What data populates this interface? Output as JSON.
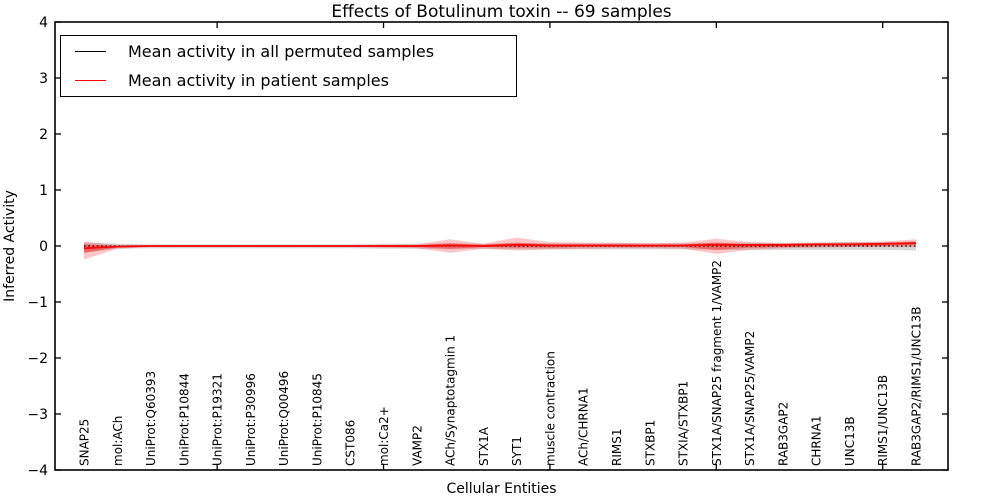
{
  "chart_data": {
    "type": "line",
    "title": "Effects of Botulinum toxin -- 69 samples",
    "xlabel": "Cellular Entities",
    "ylabel": "Inferred Activity",
    "ylim": [
      -4,
      4
    ],
    "grid": false,
    "legend_position": "upper left",
    "y_tick_labels": [
      "4",
      "3",
      "2",
      "1",
      "0",
      "−1",
      "−2",
      "−3",
      "−4"
    ],
    "y_tick_values": [
      4,
      3,
      2,
      1,
      0,
      -1,
      -2,
      -3,
      -4
    ],
    "x_major_tick_indices": [
      4,
      9,
      14,
      19,
      24
    ],
    "categories": [
      "SNAP25",
      "mol:ACh",
      "UniProt:Q60393",
      "UniProt:P10844",
      "UniProt:P19321",
      "UniProt:P30996",
      "UniProt:Q00496",
      "UniProt:P10845",
      "CST086",
      "mol:Ca2+",
      "VAMP2",
      "ACh/Synaptotagmin 1",
      "STX1A",
      "SYT1",
      "muscle contraction",
      "ACh/CHRNA1",
      "RIMS1",
      "STXBP1",
      "STXIA/STXBP1",
      "STX1A/SNAP25 fragment 1/VAMP2",
      "STX1A/SNAP25/VAMP2",
      "RAB3GAP2",
      "CHRNA1",
      "UNC13B",
      "RIMS1/UNC13B",
      "RAB3GAP2/RIMS1/UNC13B"
    ],
    "series": [
      {
        "name": "Mean activity in all permuted samples",
        "color": "#000000",
        "style": "dotted",
        "values": [
          0,
          0,
          0,
          0,
          0,
          0,
          0,
          0,
          0,
          0,
          0,
          0,
          0,
          0,
          0,
          0,
          0,
          0,
          0,
          0,
          0,
          0,
          0,
          0,
          0,
          0
        ]
      },
      {
        "name": "Mean activity in patient samples",
        "color": "#ff0000",
        "style": "solid",
        "values": [
          -0.04,
          -0.01,
          0,
          0,
          0,
          0,
          0,
          0,
          0,
          0,
          0,
          0.01,
          0,
          0.02,
          0.01,
          0.01,
          0.01,
          0.01,
          0.01,
          0.02,
          0.02,
          0.02,
          0.03,
          0.03,
          0.04,
          0.05
        ]
      }
    ],
    "bands": [
      {
        "name": "permuted-samples-range",
        "color": "rgba(110,110,110,0.28)",
        "upper": [
          0.06,
          0.04,
          0.03,
          0.03,
          0.03,
          0.03,
          0.03,
          0.03,
          0.03,
          0.04,
          0.04,
          0.05,
          0.04,
          0.05,
          0.05,
          0.05,
          0.05,
          0.05,
          0.05,
          0.06,
          0.06,
          0.06,
          0.06,
          0.07,
          0.07,
          0.08
        ],
        "lower": [
          -0.12,
          -0.05,
          -0.04,
          -0.04,
          -0.04,
          -0.04,
          -0.04,
          -0.04,
          -0.04,
          -0.05,
          -0.05,
          -0.06,
          -0.05,
          -0.06,
          -0.06,
          -0.06,
          -0.06,
          -0.06,
          -0.06,
          -0.07,
          -0.07,
          -0.07,
          -0.07,
          -0.07,
          -0.07,
          -0.08
        ]
      },
      {
        "name": "patient-samples-range-outer",
        "color": "rgba(255,0,0,0.22)",
        "upper": [
          0.08,
          0.02,
          0.01,
          0.01,
          0.01,
          0.01,
          0.01,
          0.01,
          0.01,
          0.02,
          0.03,
          0.12,
          0.04,
          0.15,
          0.07,
          0.06,
          0.06,
          0.05,
          0.06,
          0.13,
          0.07,
          0.05,
          0.06,
          0.07,
          0.08,
          0.12
        ],
        "lower": [
          -0.24,
          -0.05,
          -0.02,
          -0.02,
          -0.02,
          -0.02,
          -0.02,
          -0.02,
          -0.02,
          -0.03,
          -0.04,
          -0.12,
          -0.05,
          -0.08,
          -0.06,
          -0.05,
          -0.04,
          -0.04,
          -0.05,
          -0.14,
          -0.07,
          -0.04,
          -0.03,
          -0.02,
          -0.02,
          -0.02
        ]
      },
      {
        "name": "patient-samples-range-inner",
        "color": "rgba(255,0,0,0.4)",
        "upper": [
          0.03,
          0.0,
          0.005,
          0.005,
          0.005,
          0.005,
          0.005,
          0.005,
          0.005,
          0.01,
          0.01,
          0.05,
          0.02,
          0.06,
          0.03,
          0.03,
          0.03,
          0.02,
          0.03,
          0.06,
          0.03,
          0.02,
          0.03,
          0.03,
          0.04,
          0.08
        ],
        "lower": [
          -0.12,
          -0.03,
          -0.01,
          -0.01,
          -0.01,
          -0.01,
          -0.01,
          -0.01,
          -0.01,
          -0.015,
          -0.02,
          -0.05,
          -0.02,
          -0.03,
          -0.03,
          -0.02,
          -0.02,
          -0.02,
          -0.02,
          -0.07,
          -0.03,
          -0.02,
          -0.01,
          -0.01,
          0.0,
          0.02
        ]
      }
    ]
  }
}
